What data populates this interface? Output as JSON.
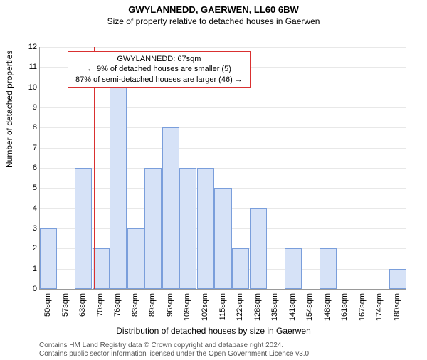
{
  "title": "GWYLANNEDD, GAERWEN, LL60 6BW",
  "title_fontsize": 13,
  "subtitle": "Size of property relative to detached houses in Gaerwen",
  "subtitle_fontsize": 12,
  "ylabel": "Number of detached properties",
  "xlabel": "Distribution of detached houses by size in Gaerwen",
  "infobox": {
    "line1": "GWYLANNEDD: 67sqm",
    "line2": "← 9% of detached houses are smaller (5)",
    "line3": "87% of semi-detached houses are larger (46) →"
  },
  "reference_value": 67,
  "chart": {
    "type": "histogram",
    "x_categories": [
      "50sqm",
      "57sqm",
      "63sqm",
      "70sqm",
      "76sqm",
      "83sqm",
      "89sqm",
      "96sqm",
      "109sqm",
      "102sqm",
      "115sqm",
      "122sqm",
      "128sqm",
      "135sqm",
      "141sqm",
      "154sqm",
      "148sqm",
      "161sqm",
      "167sqm",
      "174sqm",
      "180sqm"
    ],
    "values": [
      3,
      0,
      6,
      2,
      10,
      3,
      6,
      8,
      6,
      6,
      5,
      2,
      4,
      0,
      2,
      0,
      2,
      0,
      0,
      0,
      1
    ],
    "ylim": [
      0,
      12
    ],
    "ytick_step": 1,
    "bar_fill": "#d6e2f7",
    "bar_border": "#7a9edb",
    "grid_color": "#e8e8e8",
    "refline_color": "#d93030",
    "background": "#ffffff",
    "axis_fontsize": 11,
    "label_fontsize": 12,
    "reference_index": 2.6
  },
  "attribution": {
    "line1": "Contains HM Land Registry data © Crown copyright and database right 2024.",
    "line2": "Contains public sector information licensed under the Open Government Licence v3.0."
  }
}
